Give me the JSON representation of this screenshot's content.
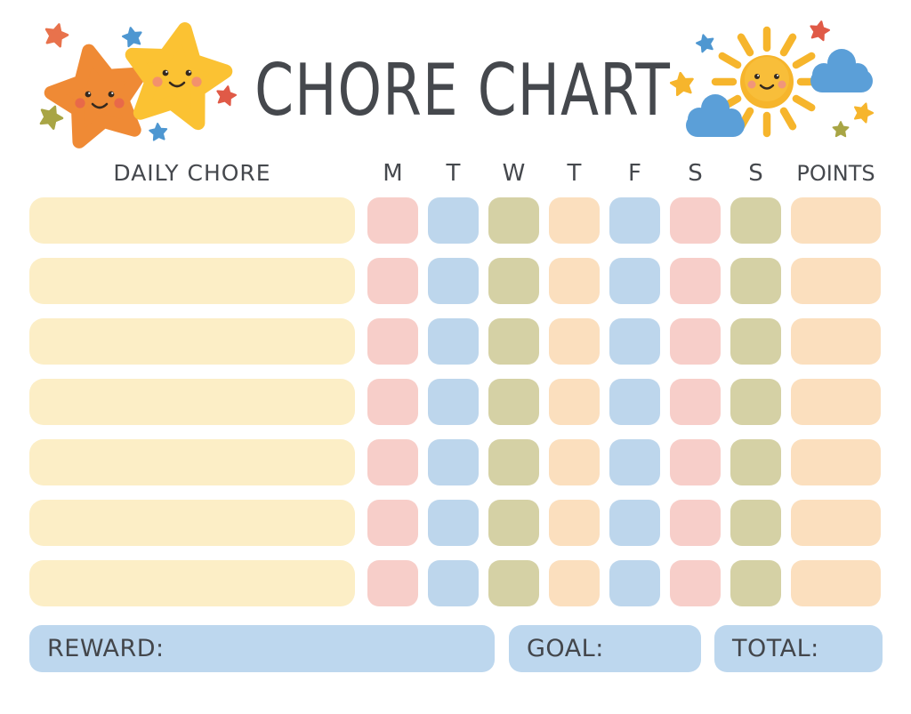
{
  "title": "CHORE CHART",
  "table": {
    "chore_column_header": "DAILY CHORE",
    "day_headers": [
      "M",
      "T",
      "W",
      "T",
      "F",
      "S",
      "S"
    ],
    "points_header": "POINTS",
    "row_count": 7,
    "day_cell_pattern": [
      "pink",
      "blue",
      "olive",
      "peach",
      "blue",
      "pink",
      "olive"
    ],
    "points_cell_color": "peach",
    "palette": {
      "chore_cell": "#FCEEC6",
      "pink": "#F7CEC9",
      "blue": "#BDD6EC",
      "olive": "#D5D1A5",
      "peach": "#FBDFBE"
    },
    "chore_values": [
      "",
      "",
      "",
      "",
      "",
      "",
      ""
    ]
  },
  "footer": {
    "reward_label": "REWARD:",
    "goal_label": "GOAL:",
    "total_label": "TOTAL:",
    "reward_value": "",
    "goal_value": "",
    "total_value": "",
    "box_color": "#BDD7EE"
  },
  "colors": {
    "text": "#45484D",
    "background": "#FFFFFF",
    "sun_yellow": "#F6B52C",
    "cloud_blue": "#5B9FD8",
    "star_orange": "#EF8A35",
    "star_yellow": "#FBC233",
    "accent_red": "#E05A47",
    "accent_blue": "#4E97D1",
    "accent_olive": "#A8A545"
  },
  "decorations": {
    "left": [
      "orange-smiling-star",
      "yellow-smiling-star",
      "small-accent-stars"
    ],
    "right": [
      "smiling-sun",
      "blue-clouds",
      "small-accent-stars"
    ]
  }
}
